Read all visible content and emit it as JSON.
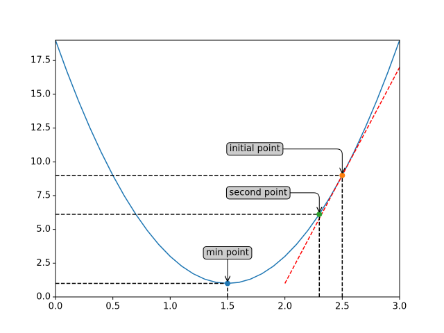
{
  "chart_data": {
    "type": "line",
    "x": [
      0,
      0.1,
      0.2,
      0.3,
      0.4,
      0.5,
      0.6,
      0.7,
      0.8,
      0.9,
      1.0,
      1.1,
      1.2,
      1.3,
      1.4,
      1.5,
      1.6,
      1.7,
      1.8,
      1.9,
      2.0,
      2.1,
      2.2,
      2.3,
      2.4,
      2.5,
      2.6,
      2.7,
      2.8,
      2.9,
      3.0
    ],
    "series": [
      {
        "color": "#1f77b4",
        "x": [
          0,
          0.1,
          0.2,
          0.3,
          0.4,
          0.5,
          0.6,
          0.7,
          0.8,
          0.9,
          1.0,
          1.1,
          1.2,
          1.3,
          1.4,
          1.5,
          1.6,
          1.7,
          1.8,
          1.9,
          2.0,
          2.1,
          2.2,
          2.3,
          2.4,
          2.5,
          2.6,
          2.7,
          2.8,
          2.9,
          3.0
        ],
        "values": [
          19,
          16.68,
          14.52,
          12.52,
          10.68,
          9,
          7.48,
          6.12,
          4.92,
          3.88,
          3,
          2.28,
          1.72,
          1.32,
          1.08,
          1,
          1.08,
          1.32,
          1.72,
          2.28,
          3,
          3.88,
          4.92,
          6.12,
          7.48,
          9,
          10.68,
          12.52,
          14.52,
          16.68,
          19
        ]
      },
      {
        "color": "#ff0000",
        "dashed": true,
        "x": [
          2.0,
          3.0
        ],
        "values": [
          1,
          17
        ]
      }
    ],
    "points": [
      {
        "label": "min point",
        "x": 1.5,
        "y": 1,
        "color": "#1f77b4"
      },
      {
        "label": "second point",
        "x": 2.3,
        "y": 6.12,
        "color": "#2ca02c"
      },
      {
        "label": "initial point",
        "x": 2.5,
        "y": 9,
        "color": "#ff7f0e"
      }
    ],
    "xlim": [
      0,
      3
    ],
    "ylim": [
      0,
      19
    ],
    "xticks": [
      {
        "value": 0,
        "label": "0.0"
      },
      {
        "value": 0.5,
        "label": "0.5"
      },
      {
        "value": 1,
        "label": "1.0"
      },
      {
        "value": 1.5,
        "label": "1.5"
      },
      {
        "value": 2,
        "label": "2.0"
      },
      {
        "value": 2.5,
        "label": "2.5"
      },
      {
        "value": 3,
        "label": "3.0"
      }
    ],
    "yticks": [
      {
        "value": 0,
        "label": "0.0"
      },
      {
        "value": 2.5,
        "label": "2.5"
      },
      {
        "value": 5,
        "label": "5.0"
      },
      {
        "value": 7.5,
        "label": "7.5"
      },
      {
        "value": 10,
        "label": "10.0"
      },
      {
        "value": 12.5,
        "label": "12.5"
      },
      {
        "value": 15,
        "label": "15.0"
      },
      {
        "value": 17.5,
        "label": "17.5"
      }
    ]
  }
}
